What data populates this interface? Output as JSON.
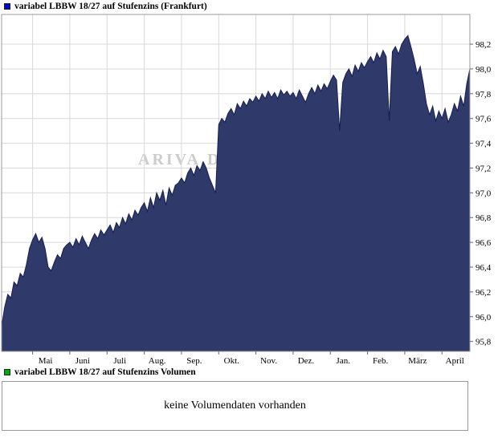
{
  "header": {
    "legend_label": "variabel LBBW 18/27 auf Stufenzins (Frankfurt)",
    "marker_color": "#0000cc"
  },
  "watermark": "ARIVA.DE",
  "chart_data": {
    "type": "area",
    "title": "variabel LBBW 18/27 auf Stufenzins (Frankfurt)",
    "x_tick_labels": [
      "Mai",
      "Juni",
      "Juli",
      "Aug.",
      "Sep.",
      "Okt.",
      "Nov.",
      "Dez.",
      "Jan.",
      "Feb.",
      "März",
      "April"
    ],
    "month_start_indices": [
      10,
      22,
      34,
      46,
      58,
      70,
      82,
      94,
      106,
      118,
      130,
      142
    ],
    "y_ticks": [
      95.8,
      96.0,
      96.2,
      96.4,
      96.6,
      96.8,
      97.0,
      97.2,
      97.4,
      97.6,
      97.8,
      98.0,
      98.2
    ],
    "y_tick_labels": [
      "95,8",
      "96,0",
      "96,2",
      "96,4",
      "96,6",
      "96,8",
      "97,0",
      "97,2",
      "97,4",
      "97,6",
      "97,8",
      "98,0",
      "98,2"
    ],
    "ylim": [
      95.72,
      98.44
    ],
    "grid": true,
    "legend_position": "top-left",
    "series": [
      {
        "name": "variabel LBBW 18/27 auf Stufenzins (Frankfurt)",
        "values": [
          95.92,
          96.08,
          96.18,
          96.15,
          96.28,
          96.25,
          96.35,
          96.32,
          96.42,
          96.55,
          96.62,
          96.67,
          96.6,
          96.64,
          96.55,
          96.4,
          96.37,
          96.44,
          96.5,
          96.47,
          96.55,
          96.58,
          96.6,
          96.56,
          96.63,
          96.58,
          96.65,
          96.6,
          96.55,
          96.62,
          96.67,
          96.63,
          96.7,
          96.66,
          96.7,
          96.74,
          96.68,
          96.76,
          96.72,
          96.8,
          96.75,
          96.83,
          96.78,
          96.86,
          96.82,
          96.88,
          96.92,
          96.85,
          96.96,
          96.88,
          97.0,
          96.94,
          97.02,
          96.9,
          97.04,
          96.98,
          97.06,
          97.08,
          97.12,
          97.08,
          97.16,
          97.2,
          97.14,
          97.22,
          97.18,
          97.25,
          97.2,
          97.12,
          97.06,
          97.0,
          97.55,
          97.6,
          97.57,
          97.64,
          97.68,
          97.63,
          97.72,
          97.68,
          97.74,
          97.7,
          97.76,
          97.73,
          97.78,
          97.74,
          97.8,
          97.76,
          97.82,
          97.77,
          97.81,
          97.76,
          97.83,
          97.79,
          97.82,
          97.78,
          97.81,
          97.76,
          97.83,
          97.78,
          97.73,
          97.8,
          97.85,
          97.8,
          97.87,
          97.82,
          97.88,
          97.84,
          97.9,
          97.95,
          97.91,
          97.5,
          97.89,
          97.96,
          98.0,
          97.94,
          98.03,
          97.98,
          98.05,
          98.01,
          98.06,
          98.1,
          98.05,
          98.13,
          98.08,
          98.15,
          98.1,
          97.58,
          98.14,
          98.18,
          98.12,
          98.2,
          98.24,
          98.27,
          98.18,
          98.08,
          97.96,
          98.02,
          97.88,
          97.72,
          97.63,
          97.7,
          97.58,
          97.66,
          97.6,
          97.68,
          97.57,
          97.63,
          97.72,
          97.66,
          97.78,
          97.7,
          97.88,
          98.0
        ]
      }
    ],
    "colors": {
      "area_fill": "#303a6a",
      "line": "#161e4e",
      "grid": "#d8d8d8",
      "border": "#999999",
      "tick": "#666666"
    }
  },
  "volume_panel": {
    "legend_label": "variabel LBBW 18/27 auf Stufenzins Volumen",
    "marker_color": "#00aa00",
    "message": "keine Volumendaten vorhanden"
  }
}
